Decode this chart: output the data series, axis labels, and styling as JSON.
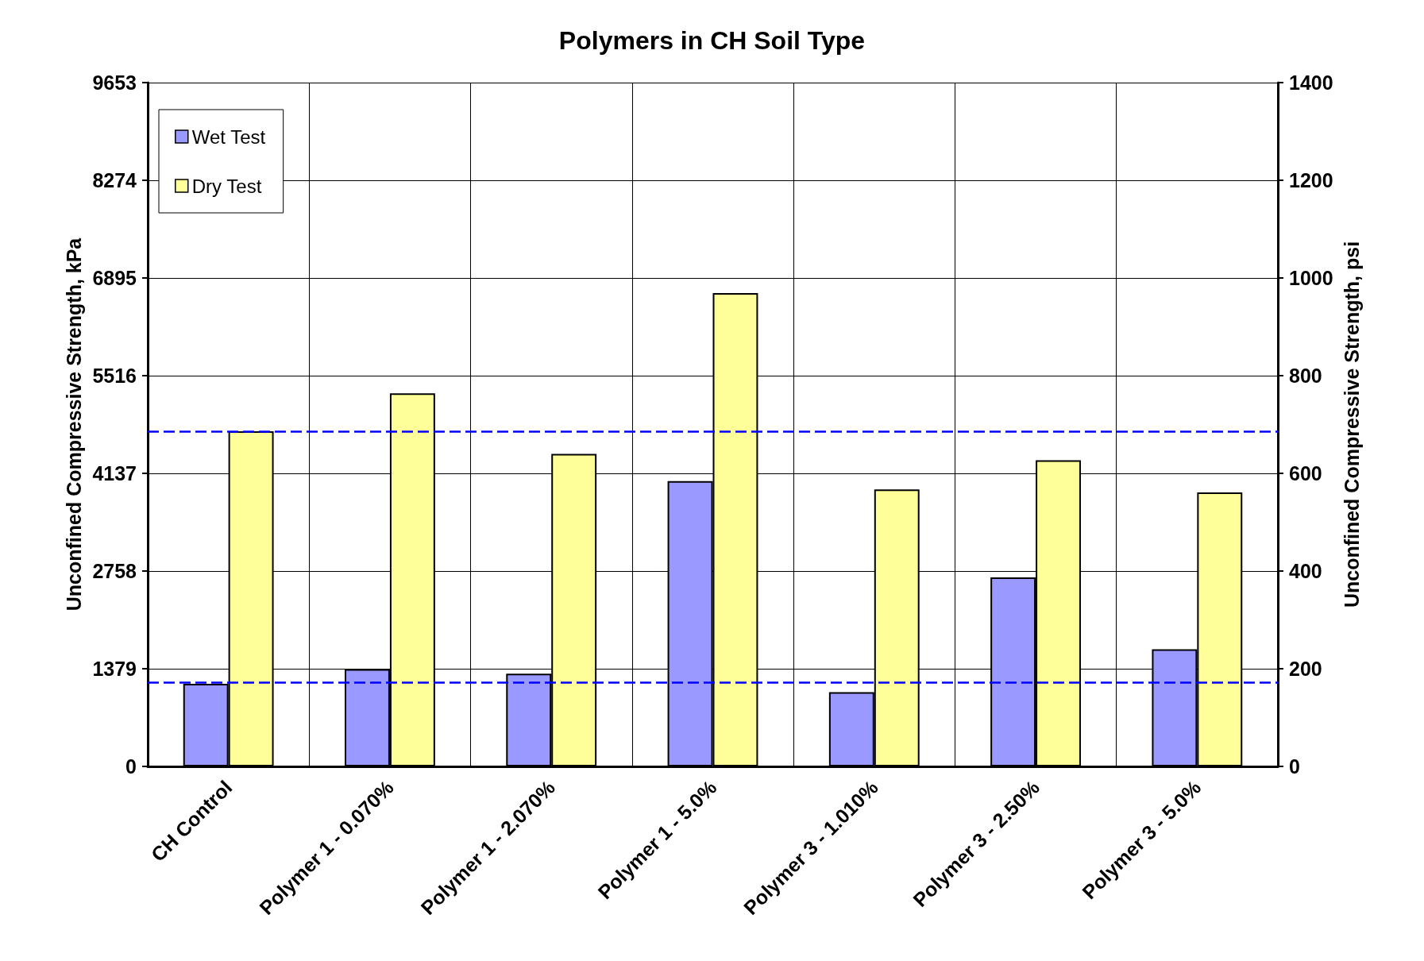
{
  "chart_data": {
    "type": "bar",
    "title": "Polymers in CH Soil Type",
    "ylabel": "Unconfined Compressive Strength, kPa",
    "y2label": "Unconfined Compressive Strength, psi",
    "categories": [
      "CH Control",
      "Polymer 1 - 0.070%",
      "Polymer 1 - 2.070%",
      "Polymer 1 - 5.0%",
      "Polymer 3 - 1.010%",
      "Polymer 3 - 2.50%",
      "Polymer 3 - 5.0%"
    ],
    "series": [
      {
        "name": "Wet Test",
        "color": "#9999ff",
        "axis": "y2",
        "values": [
          169,
          199,
          190,
          584,
          152,
          387,
          240
        ]
      },
      {
        "name": "Dry Test",
        "color": "#ffff99",
        "axis": "y2",
        "values": [
          686,
          764,
          640,
          969,
          567,
          627,
          561
        ]
      }
    ],
    "ylim": [
      0,
      9653
    ],
    "yticks": [
      0,
      1379,
      2758,
      4137,
      5516,
      6895,
      8274,
      9653
    ],
    "y2lim": [
      0,
      1400
    ],
    "y2ticks": [
      0,
      200,
      400,
      600,
      800,
      1000,
      1200,
      1400
    ],
    "ref_lines": [
      {
        "axis": "y2",
        "value": 686,
        "label": null,
        "color": "#0000ff",
        "line_style": "dashed"
      },
      {
        "axis": "y2",
        "value": 172,
        "label": null,
        "color": "#0000ff",
        "line_style": "dashed"
      }
    ],
    "grid": true,
    "legend": "top left"
  }
}
